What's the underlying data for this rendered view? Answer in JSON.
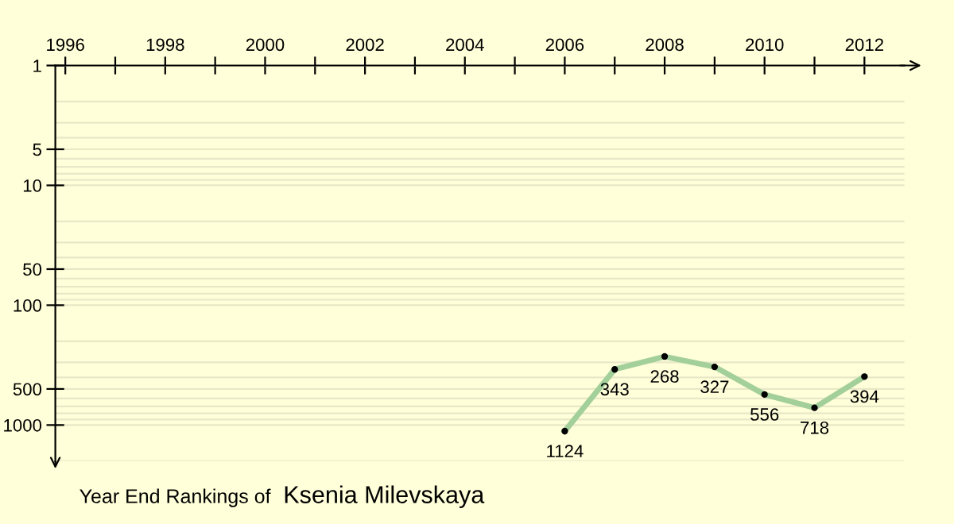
{
  "chart_data": {
    "type": "line",
    "title": "Year End Rankings of",
    "subtitle": "Ksenia Milevskaya",
    "x": [
      2006,
      2007,
      2008,
      2009,
      2010,
      2011,
      2012
    ],
    "series": [
      {
        "color": "#a3cf9a",
        "values": [
          1124,
          343,
          268,
          327,
          556,
          718,
          394
        ]
      }
    ],
    "data_labels": true,
    "marker": "circle",
    "log": true,
    "grid": "y",
    "xlim": [
      1995.8,
      2012.8
    ],
    "ylim": [
      2000,
      1
    ],
    "xticks": [
      1996,
      {
        "value": 1997,
        "label": null
      },
      1998,
      {
        "value": 1999,
        "label": null
      },
      2000,
      {
        "value": 2001,
        "label": null
      },
      2002,
      {
        "value": 2003,
        "label": null
      },
      2004,
      {
        "value": 2005,
        "label": null
      },
      2006,
      {
        "value": 2007,
        "label": null
      },
      2008,
      {
        "value": 2009,
        "label": null
      },
      2010,
      {
        "value": 2011,
        "label": null
      },
      2012
    ],
    "yticks": [
      1,
      {
        "value": 2,
        "label": null
      },
      {
        "value": 3,
        "label": null
      },
      {
        "value": 4,
        "label": null
      },
      5,
      {
        "value": 6,
        "label": null
      },
      {
        "value": 7,
        "label": null
      },
      {
        "value": 8,
        "label": null
      },
      {
        "value": 9,
        "label": null
      },
      10,
      {
        "value": 20,
        "label": null
      },
      {
        "value": 30,
        "label": null
      },
      {
        "value": 40,
        "label": null
      },
      50,
      {
        "value": 60,
        "label": null
      },
      {
        "value": 70,
        "label": null
      },
      {
        "value": 80,
        "label": null
      },
      {
        "value": 90,
        "label": null
      },
      100,
      {
        "value": 200,
        "label": null
      },
      {
        "value": 300,
        "label": null
      },
      {
        "value": 400,
        "label": null
      },
      500,
      {
        "value": 600,
        "label": null
      },
      {
        "value": 700,
        "label": null
      },
      {
        "value": 800,
        "label": null
      },
      {
        "value": 900,
        "label": null
      },
      1000,
      {
        "value": 2000,
        "label": null
      }
    ]
  }
}
